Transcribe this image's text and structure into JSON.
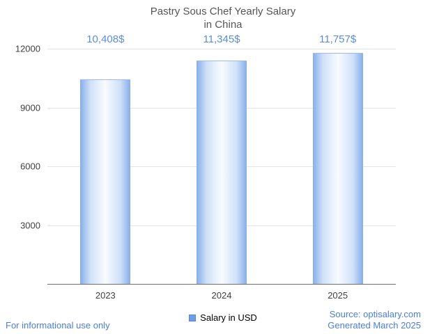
{
  "title": {
    "line1": "Pastry Sous Chef Yearly Salary",
    "line2": "in China"
  },
  "chart_data": {
    "type": "bar",
    "title": "Pastry Sous Chef Yearly Salary in China",
    "categories": [
      "2023",
      "2024",
      "2025"
    ],
    "values": [
      10408,
      11345,
      11757
    ],
    "value_labels": [
      "10,408$",
      "11,345$",
      "11,757$"
    ],
    "series_name": "Salary in USD",
    "xlabel": "",
    "ylabel": "",
    "ylim": [
      0,
      12000
    ],
    "yticks": [
      3000,
      6000,
      9000,
      12000
    ],
    "grid": true,
    "legend_position": "bottom"
  },
  "legend": {
    "label": "Salary in USD",
    "swatch_color": "#6d9eeb"
  },
  "footer": {
    "left": "For informational use only",
    "source": "Source: optisalary.com",
    "generated": "Generated March 2025"
  },
  "colors": {
    "accent_text": "#5b8dd9",
    "bar_edge": "#86aeea",
    "bar_center": "#f8fbff",
    "title": "#555555",
    "axis": "#6e6e6e",
    "grid": "#e4e4e4",
    "footer_link": "#4a7de0"
  }
}
